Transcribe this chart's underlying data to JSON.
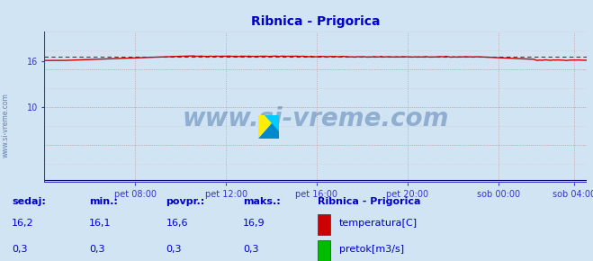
{
  "title": "Ribnica - Prigorica",
  "title_color": "#0000cc",
  "bg_color": "#d0e4f4",
  "plot_bg_color": "#d0e4f4",
  "grid_color": "#cc9999",
  "x_min": 0,
  "x_max": 287,
  "y_min": 0,
  "y_max": 20,
  "x_tick_positions": [
    48,
    96,
    144,
    192,
    240,
    280
  ],
  "x_tick_labels": [
    "pet 08:00",
    "pet 12:00",
    "pet 16:00",
    "pet 20:00",
    "sob 00:00",
    "sob 04:00"
  ],
  "y_tick_val": 16,
  "y_tick_extra": [
    10
  ],
  "temp_color": "#cc0000",
  "temp_mean": 16.6,
  "axis_color": "#3333cc",
  "tick_label_color": "#3333cc",
  "watermark_text": "www.si-vreme.com",
  "watermark_color": "#1a4a8a",
  "watermark_alpha": 0.35,
  "sidebar_text": "www.si-vreme.com",
  "sidebar_color": "#5577aa",
  "footer": {
    "col1_label": "sedaj:",
    "col2_label": "min.:",
    "col3_label": "povpr.:",
    "col4_label": "maks.:",
    "col5_label": "Ribnica - Prigorica",
    "row1": [
      "16,2",
      "16,1",
      "16,6",
      "16,9"
    ],
    "row2": [
      "0,3",
      "0,3",
      "0,3",
      "0,3"
    ],
    "legend": [
      {
        "color": "#cc0000",
        "label": "temperatura[C]"
      },
      {
        "color": "#00bb00",
        "label": "pretok[m3/s]"
      }
    ]
  }
}
